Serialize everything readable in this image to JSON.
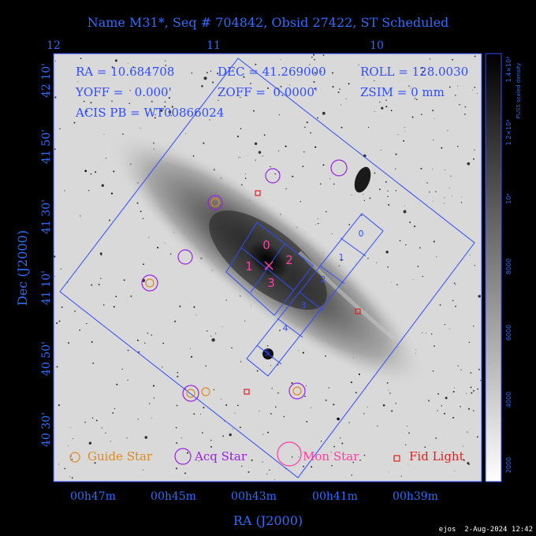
{
  "title": "Name M31*, Seq # 704842, Obsid 27422, ST Scheduled",
  "info": {
    "ra": "RA = 10.684708",
    "dec": "DEC = 41.269000",
    "roll": "ROLL = 128.0030",
    "yoff": "YOFF =   0.000'",
    "zoff": "ZOFF =  0.0000'",
    "zsim": "ZSIM = 0 mm",
    "acis_pb": "ACIS PB = WT00866024"
  },
  "axes": {
    "x_label": "RA (J2000)",
    "y_label": "Dec (J2000)",
    "top_ticks": [
      "12",
      "11",
      "10"
    ],
    "bottom_ticks": [
      "00h47m",
      "00h45m",
      "00h43m",
      "00h41m",
      "00h39m"
    ],
    "left_ticks": [
      "42 10'",
      "41 50'",
      "41 30'",
      "41 10'",
      "40 50'",
      "40 30'"
    ]
  },
  "colorbar": {
    "label": "PUSS scaled density",
    "ticks": [
      "2000",
      "4000",
      "6000",
      "8000",
      "10⁴",
      "1.2×10⁴",
      "1.4×10⁴"
    ]
  },
  "ccd_labels": {
    "acis_i": [
      "0",
      "1",
      "2",
      "3"
    ],
    "acis_s": [
      "0",
      "1",
      "2",
      "3",
      "4",
      "5"
    ]
  },
  "legend": {
    "guide": "Guide Star",
    "acq": "Acq Star",
    "mon": "Mon Star",
    "fid": "Fid Light"
  },
  "footer": "ejos  2-Aug-2024 12:42",
  "colors": {
    "field": "#2f4dff",
    "label": "#2f6cff",
    "guide": "#e08a1e",
    "acq": "#9a22e0",
    "mon": "#ff3fa0",
    "fid": "#e02020",
    "ccd_labels_i": "#ff3fa0",
    "ccd_labels_s": "#2f4dff"
  }
}
